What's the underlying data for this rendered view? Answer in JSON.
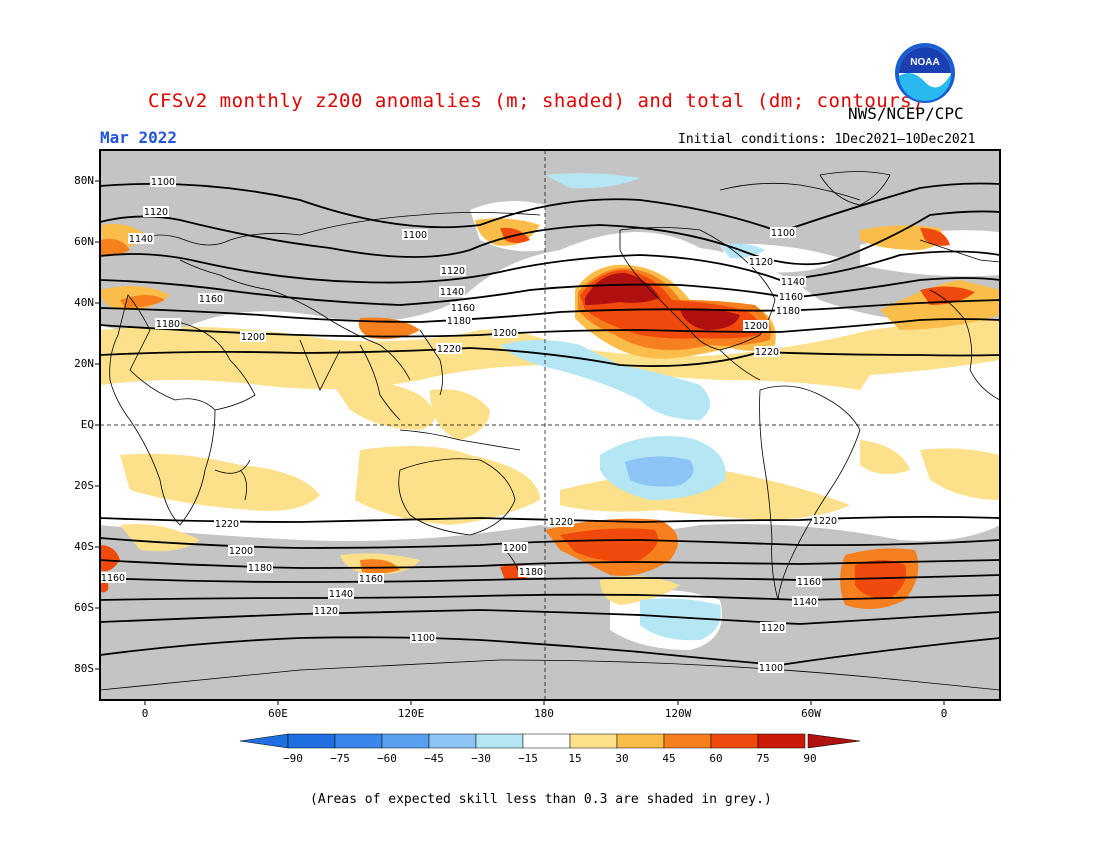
{
  "title": "CFSv2 monthly z200 anomalies (m; shaded) and total (dm; contours)",
  "agency": "NWS/NCEP/CPC",
  "logo_text": "NOAA",
  "month": "Mar 2022",
  "initial_conditions": "Initial conditions: 1Dec2021–10Dec2021",
  "footnote": "(Areas of expected skill less than 0.3 are shaded in grey.)",
  "lat_labels": [
    "80N",
    "60N",
    "40N",
    "20N",
    "EQ",
    "20S",
    "40S",
    "60S",
    "80S"
  ],
  "lon_labels": [
    "0",
    "60E",
    "120E",
    "180",
    "120W",
    "60W",
    "0"
  ],
  "colorbar": {
    "labels": [
      "−90",
      "−75",
      "−60",
      "−45",
      "−30",
      "−15",
      "15",
      "30",
      "45",
      "60",
      "75",
      "90"
    ],
    "colors": [
      "#1f6fe0",
      "#3a86ea",
      "#5aa0f0",
      "#8cc4f6",
      "#b4e6f4",
      "#ffffff",
      "#fde08a",
      "#fbbd4a",
      "#f7801e",
      "#ef4a0c",
      "#cc1a08"
    ],
    "low_color": "#1f6fe0",
    "high_color": "#b01010"
  },
  "contour_labels": {
    "c1100a": "1100",
    "c1100b": "1100",
    "c1100c": "1100",
    "c1100d": "1100",
    "c1100e": "1100",
    "c1120a": "1120",
    "c1120b": "1120",
    "c1120c": "1120",
    "c1120d": "1120",
    "c1120e": "1120",
    "c1140a": "1140",
    "c1140b": "1140",
    "c1140c": "1140",
    "c1140d": "1140",
    "c1140e": "1140",
    "c1160a": "1160",
    "c1160b": "1160",
    "c1160c": "1160",
    "c1160d": "1160",
    "c1160e": "1160",
    "c1160f": "1160",
    "c1180a": "1180",
    "c1180b": "1180",
    "c1180c": "1180",
    "c1180d": "1180",
    "c1180e": "1180",
    "c1200a": "1200",
    "c1200b": "1200",
    "c1200c": "1200",
    "c1200d": "1200",
    "c1200e": "1200",
    "c1220a": "1220",
    "c1220b": "1220",
    "c1220c": "1220",
    "c1220d": "1220",
    "c1220e": "1220"
  }
}
